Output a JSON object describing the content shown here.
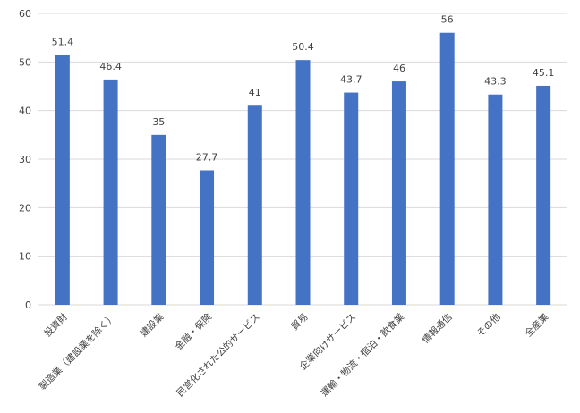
{
  "chart_data": {
    "type": "bar",
    "categories": [
      "投資財",
      "製造業（建設業を除く）",
      "建設業",
      "金融・保険",
      "民営化された公的サービス",
      "貿易",
      "企業向けサービス",
      "運輸・物流・宿泊・飲食業",
      "情報通信",
      "その他",
      "全産業"
    ],
    "values": [
      51.4,
      46.4,
      35,
      27.7,
      41,
      50.4,
      43.7,
      46,
      56,
      43.3,
      45.1
    ],
    "data_labels": [
      "51.4",
      "46.4",
      "35",
      "27.7",
      "41",
      "50.4",
      "43.7",
      "46",
      "56",
      "43.3",
      "45.1"
    ],
    "ylim": [
      0,
      60
    ],
    "yticks": [
      0,
      10,
      20,
      30,
      40,
      50,
      60
    ],
    "grid": true,
    "bar_color": "#4472c4",
    "title": "",
    "xlabel": "",
    "ylabel": ""
  }
}
